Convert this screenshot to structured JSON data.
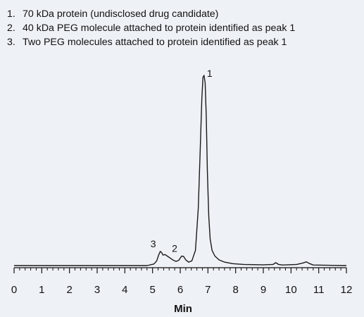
{
  "legend": [
    {
      "num": "1.",
      "text": "70 kDa protein (undisclosed drug candidate)"
    },
    {
      "num": "2.",
      "text": "40 kDa PEG molecule attached to protein identified as peak 1"
    },
    {
      "num": "3.",
      "text": "Two PEG molecules attached to protein identified as peak 1"
    }
  ],
  "chart_data": {
    "type": "line",
    "title": "",
    "xlabel": "Min",
    "ylabel": "",
    "xlim": [
      0,
      12
    ],
    "ylim": [
      0,
      100
    ],
    "grid": false,
    "line_color": "#1a1a1a",
    "x_ticks": [
      "0",
      "1",
      "2",
      "3",
      "4",
      "5",
      "6",
      "7",
      "8",
      "9",
      "10",
      "11",
      "12"
    ],
    "minor_ticks_per_unit": 5,
    "series": [
      {
        "x": [
          0,
          4.8,
          5.05,
          5.15,
          5.22,
          5.28,
          5.33,
          5.38,
          5.45,
          5.55,
          5.65,
          5.75,
          5.85,
          5.95,
          6.05,
          6.12,
          6.2,
          6.3,
          6.42,
          6.55,
          6.65,
          6.72,
          6.78,
          6.82,
          6.86,
          6.9,
          6.94,
          6.98,
          7.03,
          7.08,
          7.15,
          7.25,
          7.4,
          7.6,
          7.9,
          8.3,
          9.0,
          9.35,
          9.45,
          9.55,
          9.7,
          10.2,
          10.45,
          10.55,
          10.65,
          10.8,
          11.5,
          12
        ],
        "y": [
          0,
          0,
          0.8,
          2.5,
          5.5,
          7.5,
          6.8,
          5.5,
          5.8,
          4.8,
          3.8,
          2.8,
          2.2,
          2.8,
          5.0,
          4.8,
          3.0,
          1.8,
          2.5,
          8.0,
          30.0,
          60.0,
          88.0,
          99.0,
          100.0,
          96.0,
          78.0,
          50.0,
          26.0,
          14.0,
          8.0,
          5.0,
          3.0,
          1.8,
          1.0,
          0.6,
          0.4,
          0.6,
          1.5,
          0.6,
          0.3,
          0.6,
          1.4,
          2.0,
          1.2,
          0.3,
          0.1,
          0
        ]
      }
    ],
    "annotations": [
      {
        "text": "1",
        "x": 6.86,
        "y": 100
      },
      {
        "text": "2",
        "x": 6.05,
        "y": 5.0
      },
      {
        "text": "3",
        "x": 5.28,
        "y": 7.5
      }
    ]
  }
}
